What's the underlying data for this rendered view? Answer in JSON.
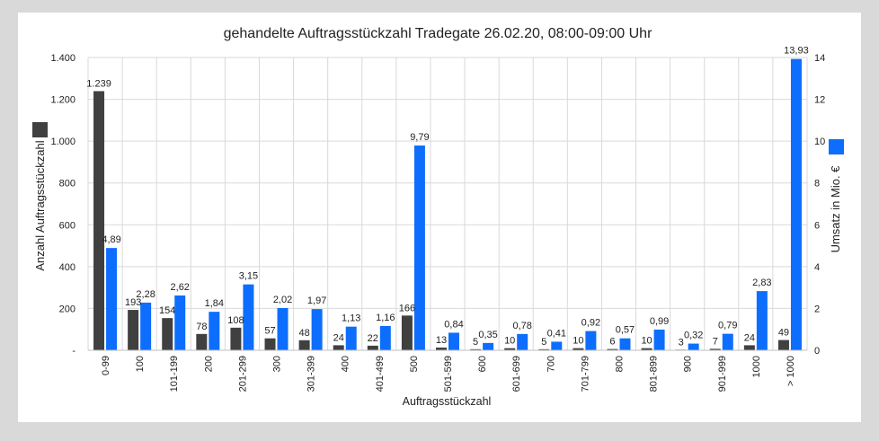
{
  "chart_data": {
    "type": "bar",
    "title": "gehandelte Auftragsstückzahl Tradegate 26.02.20, 08:00-09:00 Uhr",
    "xlabel": "Auftragsstückzahl",
    "ylabel_left": "Anzahl Auftragsstückzahl",
    "ylabel_right": "Umsatz in Mio. €",
    "categories": [
      "0-99",
      "100",
      "101-199",
      "200",
      "201-299",
      "300",
      "301-399",
      "400",
      "401-499",
      "500",
      "501-599",
      "600",
      "601-699",
      "700",
      "701-799",
      "800",
      "801-899",
      "900",
      "901-999",
      "1000",
      "> 1000"
    ],
    "series": [
      {
        "axis": "left",
        "color": "#404040",
        "values": [
          1239,
          193,
          154,
          78,
          108,
          57,
          48,
          24,
          22,
          166,
          13,
          5,
          10,
          5,
          10,
          6,
          10,
          3,
          7,
          24,
          49
        ],
        "labels": [
          "1.239",
          "193",
          "154",
          "78",
          "108",
          "57",
          "48",
          "24",
          "22",
          "166",
          "13",
          "5",
          "10",
          "5",
          "10",
          "6",
          "10",
          "3",
          "7",
          "24",
          "49"
        ]
      },
      {
        "axis": "right",
        "color": "#0d6efd",
        "values": [
          4.89,
          2.28,
          2.62,
          1.84,
          3.15,
          2.02,
          1.97,
          1.13,
          1.16,
          9.79,
          0.84,
          0.35,
          0.78,
          0.41,
          0.92,
          0.57,
          0.99,
          0.32,
          0.79,
          2.83,
          13.93
        ],
        "labels": [
          "4,89",
          "2,28",
          "2,62",
          "1,84",
          "3,15",
          "2,02",
          "1,97",
          "1,13",
          "1,16",
          "9,79",
          "0,84",
          "0,35",
          "0,78",
          "0,41",
          "0,92",
          "0,57",
          "0,99",
          "0,32",
          "0,79",
          "2,83",
          "13,93"
        ]
      }
    ],
    "ylim_left": [
      0,
      1400
    ],
    "ylim_right": [
      0,
      14
    ],
    "left_ticks": [
      {
        "value": 0,
        "label": "-"
      },
      {
        "value": 200,
        "label": "200"
      },
      {
        "value": 400,
        "label": "400"
      },
      {
        "value": 600,
        "label": "600"
      },
      {
        "value": 800,
        "label": "800"
      },
      {
        "value": 1000,
        "label": "1.000"
      },
      {
        "value": 1200,
        "label": "1.200"
      },
      {
        "value": 1400,
        "label": "1.400"
      }
    ],
    "right_ticks": [
      {
        "value": 0,
        "label": "0"
      },
      {
        "value": 2,
        "label": "2"
      },
      {
        "value": 4,
        "label": "4"
      },
      {
        "value": 6,
        "label": "6"
      },
      {
        "value": 8,
        "label": "8"
      },
      {
        "value": 10,
        "label": "10"
      },
      {
        "value": 12,
        "label": "12"
      },
      {
        "value": 14,
        "label": "14"
      }
    ],
    "grid": true,
    "legend_position": "sides, next to axis labels"
  }
}
